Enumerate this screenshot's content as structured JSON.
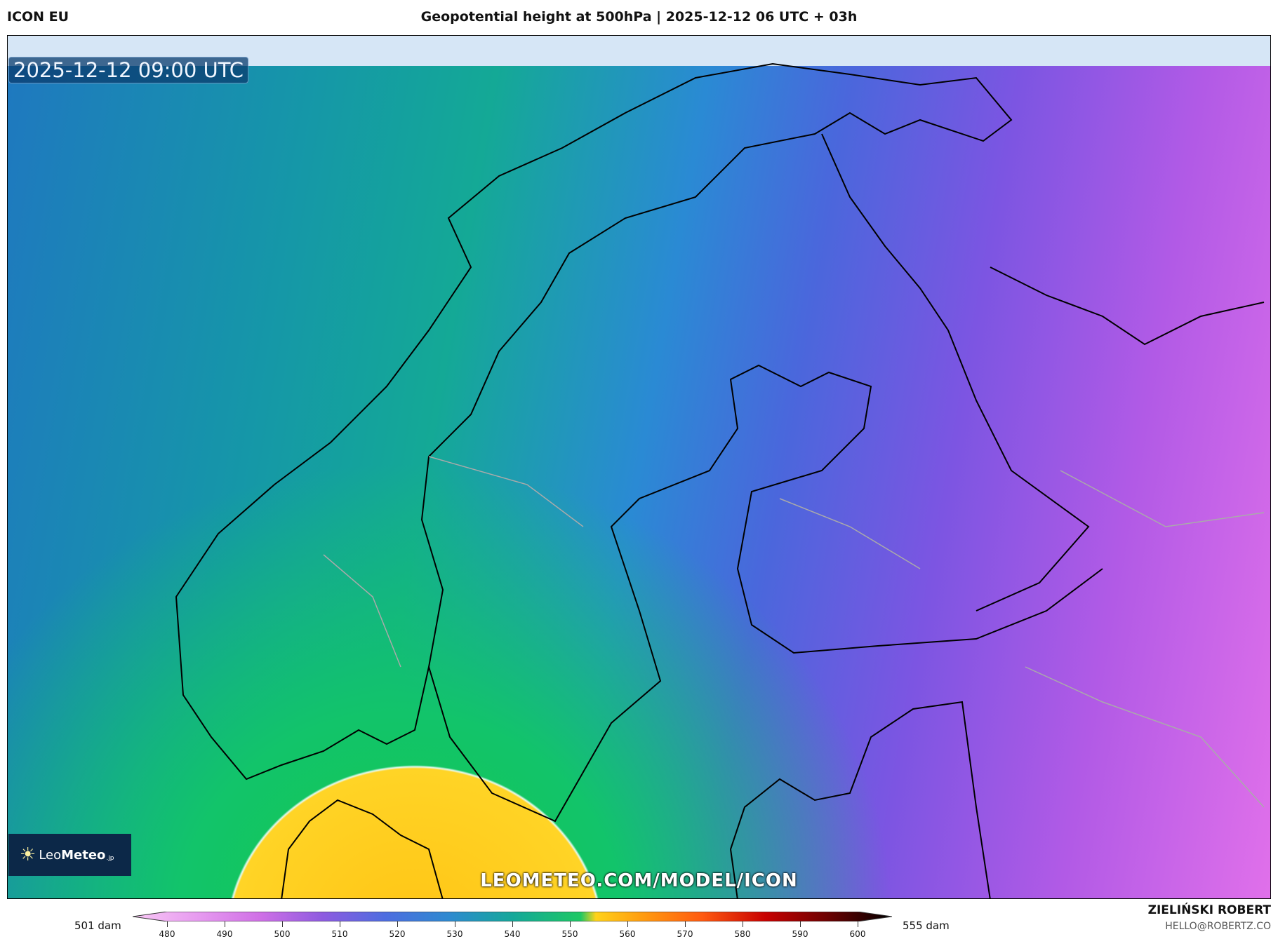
{
  "header": {
    "model": "ICON EU",
    "title": "Geopotential height at 500hPa | 2025-12-12 06 UTC + 03h"
  },
  "map": {
    "valid_time": "2025-12-12 09:00 UTC",
    "watermark": "LEOMETEO.COM/MODEL/ICON",
    "region": "Scandinavia / Baltic"
  },
  "logo": {
    "text_light": "Leo",
    "text_bold": "Meteo",
    "suffix": ".jp"
  },
  "colorbar": {
    "min_label": "501 dam",
    "max_label": "555 dam",
    "unit": "dam",
    "ticks": [
      "480",
      "490",
      "500",
      "510",
      "520",
      "530",
      "540",
      "550",
      "560",
      "570",
      "580",
      "590",
      "600"
    ],
    "colors": [
      "#f9c8f5",
      "#e79cf0",
      "#d070e6",
      "#8e5be0",
      "#4d6de0",
      "#2e8ad0",
      "#14a89a",
      "#1ec864",
      "#ffd21a",
      "#ffa010",
      "#ff5a10",
      "#c80000",
      "#6a0000",
      "#000000"
    ]
  },
  "footer": {
    "author": "ZIELIŃSKI ROBERT",
    "email": "HELLO@ROBERTZ.CO"
  }
}
